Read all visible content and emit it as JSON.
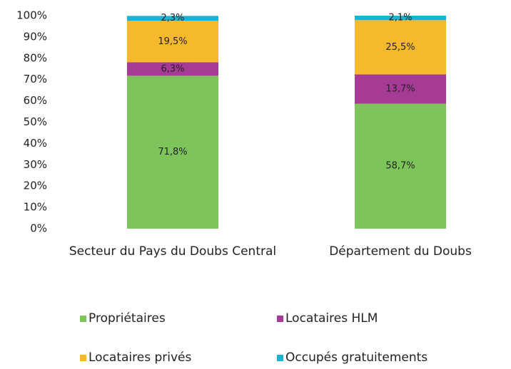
{
  "chart_data": {
    "type": "stacked_bar",
    "categories": [
      "Secteur du Pays du Doubs Central",
      "Département du Doubs"
    ],
    "series": [
      {
        "name": "Propriétaires",
        "color": "#7dc45a",
        "values": [
          71.8,
          58.7
        ],
        "value_labels": [
          "71,8%",
          "58,7%"
        ]
      },
      {
        "name": "Locataires HLM",
        "color": "#a63b95",
        "values": [
          6.3,
          13.7
        ],
        "value_labels": [
          "6,3%",
          "13,7%"
        ]
      },
      {
        "name": "Locataires privés",
        "color": "#f6b92b",
        "values": [
          19.5,
          25.5
        ],
        "value_labels": [
          "19,5%",
          "25,5%"
        ]
      },
      {
        "name": "Occupés gratuitements",
        "color": "#1fb2d0",
        "values": [
          2.3,
          2.1
        ],
        "value_labels": [
          "2,3%",
          "2,1%"
        ]
      }
    ],
    "ylim": [
      0,
      100
    ],
    "yticks": [
      {
        "value": 0,
        "label": "0%"
      },
      {
        "value": 10,
        "label": "10%"
      },
      {
        "value": 20,
        "label": "20%"
      },
      {
        "value": 30,
        "label": "30%"
      },
      {
        "value": 40,
        "label": "40%"
      },
      {
        "value": 50,
        "label": "50%"
      },
      {
        "value": 60,
        "label": "60%"
      },
      {
        "value": 70,
        "label": "70%"
      },
      {
        "value": 80,
        "label": "80%"
      },
      {
        "value": 90,
        "label": "90%"
      },
      {
        "value": 100,
        "label": "100%"
      }
    ],
    "legend": "bottom"
  }
}
